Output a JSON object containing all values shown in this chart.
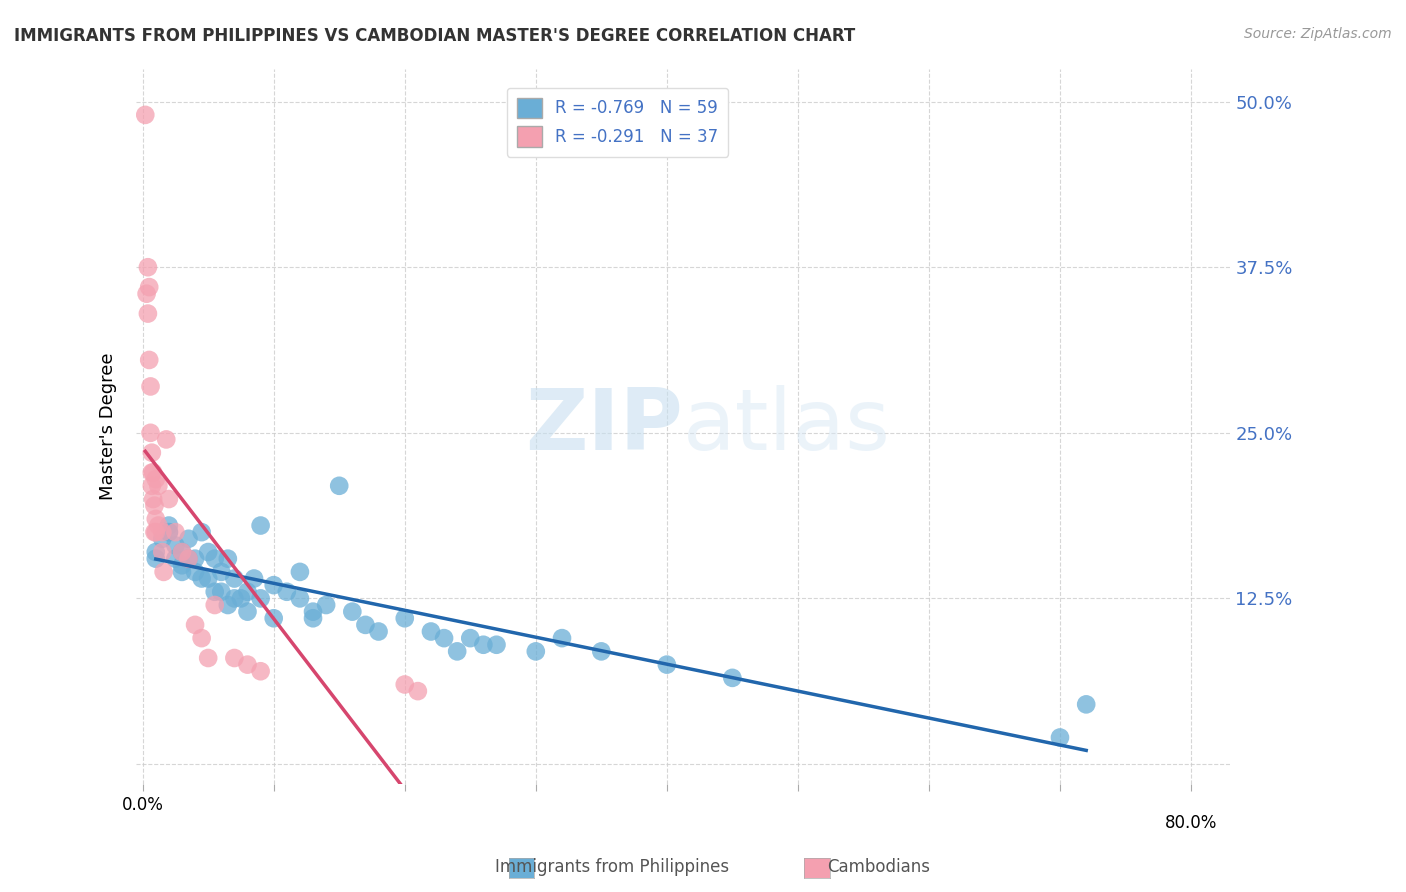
{
  "title": "IMMIGRANTS FROM PHILIPPINES VS CAMBODIAN MASTER'S DEGREE CORRELATION CHART",
  "source": "Source: ZipAtlas.com",
  "ylabel": "Master's Degree",
  "yticks": [
    0.0,
    0.125,
    0.25,
    0.375,
    0.5
  ],
  "ytick_labels": [
    "",
    "12.5%",
    "25.0%",
    "37.5%",
    "50.0%"
  ],
  "xticks": [
    0.0,
    0.1,
    0.2,
    0.3,
    0.4,
    0.5,
    0.6,
    0.7,
    0.8
  ],
  "xlim": [
    -0.005,
    0.83
  ],
  "ylim": [
    -0.015,
    0.525
  ],
  "legend_label1": "Immigrants from Philippines",
  "legend_label2": "Cambodians",
  "blue_color": "#6aaed6",
  "pink_color": "#f4a0b0",
  "blue_line_color": "#2166ac",
  "pink_line_color": "#d6466e",
  "watermark_zip": "ZIP",
  "watermark_atlas": "atlas",
  "blue_R": -0.769,
  "pink_R": -0.291,
  "blue_N": 59,
  "pink_N": 37,
  "blue_points_x": [
    0.01,
    0.01,
    0.015,
    0.02,
    0.02,
    0.02,
    0.025,
    0.025,
    0.03,
    0.03,
    0.03,
    0.035,
    0.035,
    0.04,
    0.04,
    0.045,
    0.045,
    0.05,
    0.05,
    0.055,
    0.055,
    0.06,
    0.06,
    0.065,
    0.065,
    0.07,
    0.07,
    0.075,
    0.08,
    0.08,
    0.085,
    0.09,
    0.09,
    0.1,
    0.1,
    0.11,
    0.12,
    0.12,
    0.13,
    0.13,
    0.14,
    0.15,
    0.16,
    0.17,
    0.18,
    0.2,
    0.22,
    0.23,
    0.24,
    0.25,
    0.26,
    0.27,
    0.3,
    0.32,
    0.35,
    0.4,
    0.45,
    0.7,
    0.72
  ],
  "blue_points_y": [
    0.155,
    0.16,
    0.17,
    0.175,
    0.18,
    0.175,
    0.165,
    0.155,
    0.16,
    0.15,
    0.145,
    0.17,
    0.155,
    0.155,
    0.145,
    0.175,
    0.14,
    0.16,
    0.14,
    0.155,
    0.13,
    0.145,
    0.13,
    0.155,
    0.12,
    0.14,
    0.125,
    0.125,
    0.13,
    0.115,
    0.14,
    0.18,
    0.125,
    0.135,
    0.11,
    0.13,
    0.145,
    0.125,
    0.115,
    0.11,
    0.12,
    0.21,
    0.115,
    0.105,
    0.1,
    0.11,
    0.1,
    0.095,
    0.085,
    0.095,
    0.09,
    0.09,
    0.085,
    0.095,
    0.085,
    0.075,
    0.065,
    0.02,
    0.045
  ],
  "pink_points_x": [
    0.002,
    0.003,
    0.004,
    0.004,
    0.005,
    0.005,
    0.006,
    0.006,
    0.007,
    0.007,
    0.007,
    0.008,
    0.008,
    0.009,
    0.009,
    0.01,
    0.01,
    0.01,
    0.012,
    0.012,
    0.015,
    0.015,
    0.016,
    0.018,
    0.02,
    0.025,
    0.03,
    0.035,
    0.04,
    0.045,
    0.05,
    0.055,
    0.07,
    0.08,
    0.09,
    0.2,
    0.21
  ],
  "pink_points_y": [
    0.49,
    0.355,
    0.375,
    0.34,
    0.36,
    0.305,
    0.285,
    0.25,
    0.22,
    0.235,
    0.21,
    0.22,
    0.2,
    0.195,
    0.175,
    0.215,
    0.185,
    0.175,
    0.21,
    0.18,
    0.175,
    0.16,
    0.145,
    0.245,
    0.2,
    0.175,
    0.16,
    0.155,
    0.105,
    0.095,
    0.08,
    0.12,
    0.08,
    0.075,
    0.07,
    0.06,
    0.055
  ],
  "legend_text_color": "#4472c4",
  "right_tick_color": "#4472c4",
  "grid_color": "#cccccc",
  "title_color": "#333333",
  "source_color": "#999999"
}
